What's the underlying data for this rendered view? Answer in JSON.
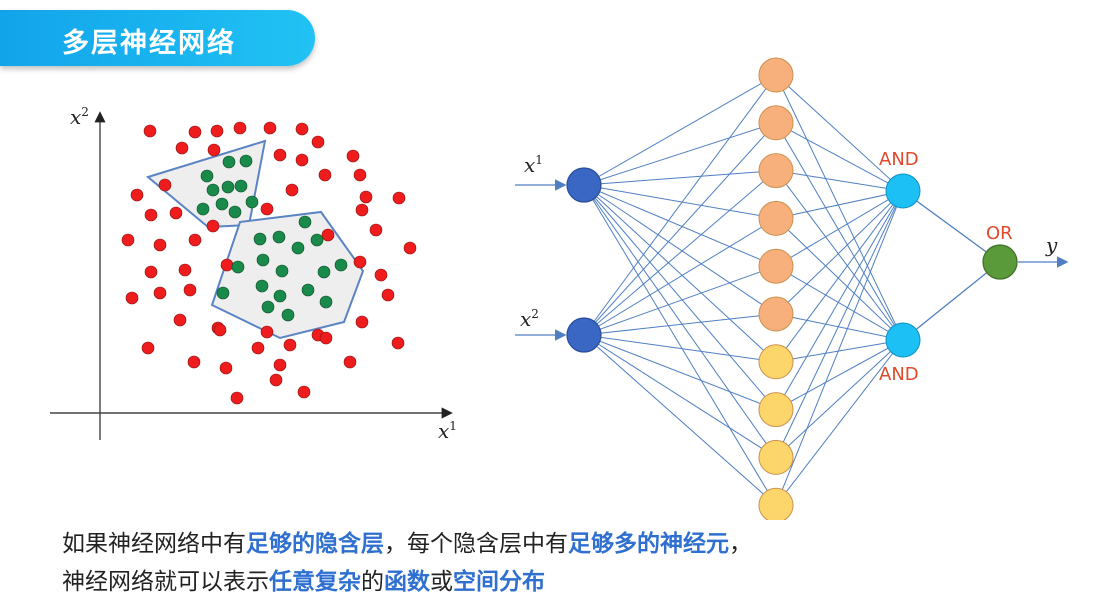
{
  "title": "多层神经网络",
  "scatter": {
    "x_label": "x",
    "x_sup": "1",
    "y_label": "x",
    "y_sup": "2",
    "colors": {
      "outer": "#ee1c1c",
      "inner": "#1a8a4a",
      "region_fill": "#eeeeee",
      "region_stroke": "#5b84c4"
    }
  },
  "network": {
    "input1_label": "x",
    "input1_sup": "1",
    "input2_label": "x",
    "input2_sup": "2",
    "and_top_label": "AND",
    "and_bottom_label": "AND",
    "or_label": "OR",
    "output_label": "y",
    "hidden_orange_count": 6,
    "hidden_yellow_count": 4,
    "colors": {
      "input_node": "#3a66c4",
      "hidden_orange": "#f7b07c",
      "hidden_yellow": "#fcd66a",
      "and_node": "#1cc0f4",
      "or_node": "#5a9a3a",
      "edge": "#4f7fc2"
    }
  },
  "caption": {
    "l1_a": "如果神经网络中有",
    "l1_b": "足够的隐含层",
    "l1_c": "，每个隐含层中有",
    "l1_d": "足够多的神经元",
    "l1_e": "，",
    "l2_a": "神经网络就可以表示",
    "l2_b": "任意复杂",
    "l2_c": "的",
    "l2_d": "函数",
    "l2_e": "或",
    "l2_f": "空间分布"
  }
}
